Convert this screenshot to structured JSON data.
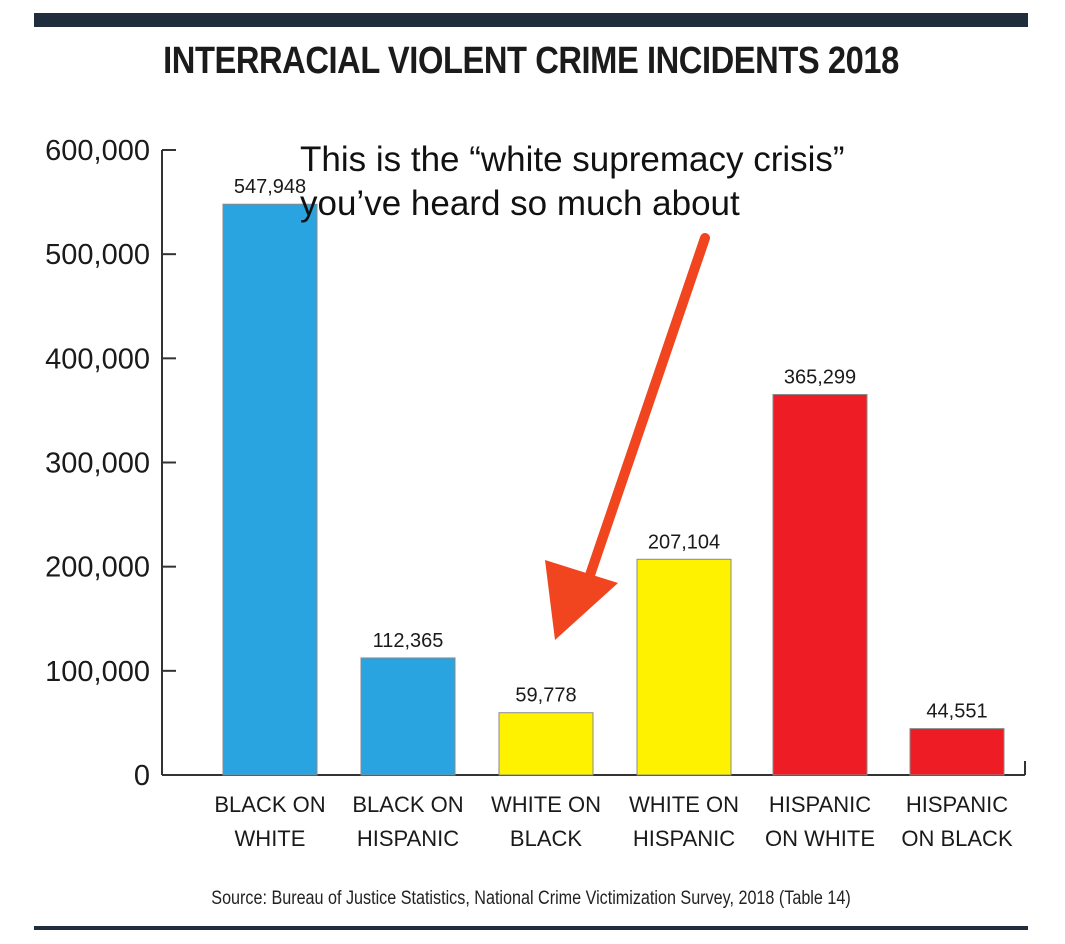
{
  "title": "INTERRACIAL VIOLENT CRIME INCIDENTS 2018",
  "annotation": {
    "line1": "This is the “white supremacy crisis”",
    "line2": "you’ve heard so much about"
  },
  "source": "Source: Bureau of Justice Statistics, National Crime Victimization Survey, 2018 (Table 14)",
  "colors": {
    "blue": "#2aa4e1",
    "yellow": "#fff200",
    "red": "#ee1c24",
    "arrow": "#f0451f",
    "axis": "#333333"
  },
  "chart_data": {
    "type": "bar",
    "title": "INTERRACIAL VIOLENT CRIME INCIDENTS 2018",
    "categories": [
      [
        "BLACK ON",
        "WHITE"
      ],
      [
        "BLACK ON",
        "HISPANIC"
      ],
      [
        "WHITE ON",
        "BLACK"
      ],
      [
        "WHITE ON",
        "HISPANIC"
      ],
      [
        "HISPANIC",
        "ON WHITE"
      ],
      [
        "HISPANIC",
        "ON BLACK"
      ]
    ],
    "values": [
      547948,
      112365,
      59778,
      207104,
      365299,
      44551
    ],
    "value_labels": [
      "547,948",
      "112,365",
      "59,778",
      "207,104",
      "365,299",
      "44,551"
    ],
    "bar_colors": [
      "blue",
      "blue",
      "yellow",
      "yellow",
      "red",
      "red"
    ],
    "yticks": [
      0,
      100000,
      200000,
      300000,
      400000,
      500000,
      600000
    ],
    "ytick_labels": [
      "0",
      "100,000",
      "200,000",
      "300,000",
      "400,000",
      "500,000",
      "600,000"
    ],
    "ylim": [
      0,
      600000
    ],
    "xlabel": "",
    "ylabel": "",
    "grid": false
  }
}
